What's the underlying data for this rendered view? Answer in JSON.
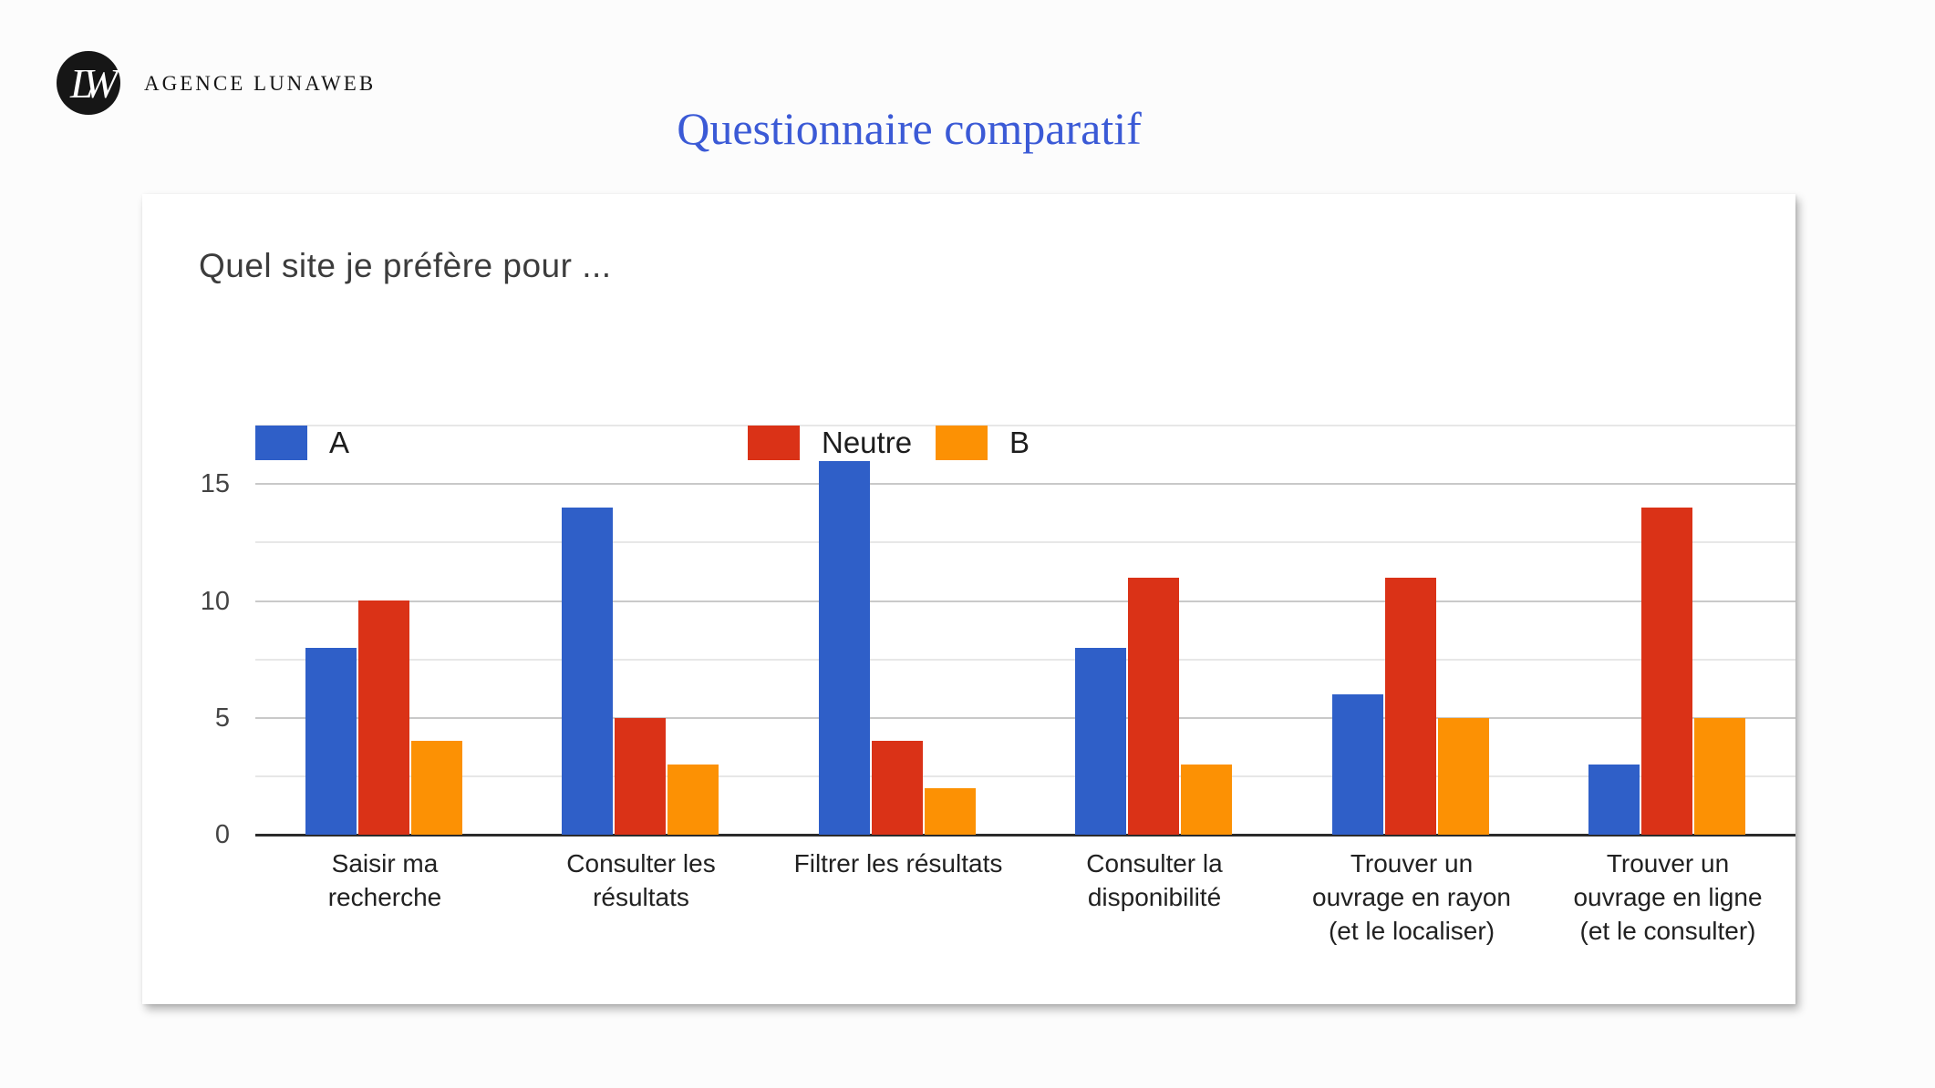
{
  "header": {
    "brand": "AGENCE LUNAWEB",
    "logo_monogram": "LW"
  },
  "page_title": "Questionnaire comparatif",
  "colors": {
    "page_title": "#3B5AD6",
    "logo_bg": "#161616",
    "series_a": "#2F5FC8",
    "series_neutre": "#DA3217",
    "series_b": "#FC9104",
    "axis": "#2b2b2b"
  },
  "chart_data": {
    "type": "bar",
    "title": "Quel site je préfère pour ...",
    "xlabel": "",
    "ylabel": "",
    "categories": [
      "Saisir ma\nrecherche",
      "Consulter les\nrésultats",
      "Filtrer les résultats",
      "Consulter la\ndisponibilité",
      "Trouver un\nouvrage en rayon\n(et le localiser)",
      "Trouver un\nouvrage en ligne\n(et le consulter)"
    ],
    "series": [
      {
        "name": "A",
        "color": "#2F5FC8",
        "values": [
          8,
          14,
          16,
          8,
          6,
          3
        ]
      },
      {
        "name": "Neutre",
        "color": "#DA3217",
        "values": [
          10,
          5,
          4,
          11,
          11,
          14
        ]
      },
      {
        "name": "B",
        "color": "#FC9104",
        "values": [
          4,
          3,
          2,
          3,
          5,
          5
        ]
      }
    ],
    "ylim": [
      0,
      17.5
    ],
    "yticks_major": [
      0,
      5,
      10,
      15
    ],
    "yticks_minor": [
      2.5,
      7.5,
      12.5,
      17.5
    ],
    "grid": true,
    "legend_position": "top-inside"
  }
}
